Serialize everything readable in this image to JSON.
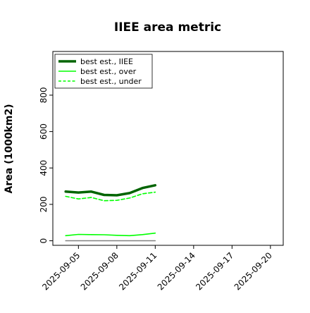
{
  "chart_data": {
    "type": "line",
    "title": "IIEE area metric",
    "xlabel": "",
    "ylabel": "Area (1000km2)",
    "x_ticks": [
      "2025-09-05",
      "2025-09-08",
      "2025-09-11",
      "2025-09-14",
      "2025-09-17",
      "2025-09-20"
    ],
    "xlim": [
      "2025-09-03",
      "2025-09-21"
    ],
    "ylim": [
      -25,
      1040
    ],
    "y_ticks": [
      0,
      200,
      400,
      600,
      800
    ],
    "grid": false,
    "legend_position": "top-left",
    "x": [
      "2025-09-04",
      "2025-09-05",
      "2025-09-06",
      "2025-09-07",
      "2025-09-08",
      "2025-09-09",
      "2025-09-10",
      "2025-09-11"
    ],
    "series": [
      {
        "name": "best est., IIEE",
        "color": "#006400",
        "style": "solid-thick",
        "values": [
          270,
          265,
          270,
          252,
          250,
          262,
          290,
          305
        ]
      },
      {
        "name": "best est., over",
        "color": "#00ff00",
        "style": "solid",
        "values": [
          28,
          35,
          34,
          33,
          30,
          28,
          34,
          42
        ]
      },
      {
        "name": "best est., under",
        "color": "#00ff00",
        "style": "dashed",
        "values": [
          244,
          230,
          238,
          220,
          222,
          235,
          258,
          267
        ]
      },
      {
        "color": "#808080",
        "style": "solid",
        "values": [
          0,
          0,
          0,
          0,
          0,
          0,
          0,
          0
        ]
      }
    ]
  }
}
